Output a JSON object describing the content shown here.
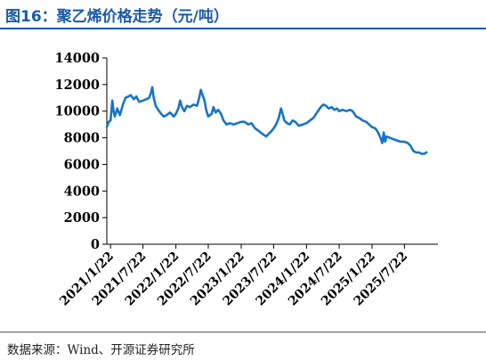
{
  "figure": {
    "title": "图16：聚乙烯价格走势（元/吨）",
    "source": "数据来源：Wind、开源证券研究所"
  },
  "colors": {
    "line": "#1874c4",
    "title": "#1a5aa8",
    "axis": "#000000"
  },
  "chart_data": {
    "type": "line",
    "title": "",
    "xlabel": "",
    "ylabel": "",
    "ylim": [
      0,
      14000
    ],
    "yticks": [
      0,
      2000,
      4000,
      6000,
      8000,
      10000,
      12000,
      14000
    ],
    "xticks": [
      "2021/1/22",
      "2021/7/22",
      "2022/1/22",
      "2022/7/22",
      "2023/1/22",
      "2023/7/22",
      "2024/1/22",
      "2024/7/22",
      "2025/1/22",
      "2025/7/22"
    ],
    "xlim": [
      "2021-01-01",
      "2026-01-25"
    ],
    "grid": false,
    "legend": "none",
    "series": [
      {
        "name": "",
        "points": [
          [
            "2021-01-01",
            8800
          ],
          [
            "2021-01-12",
            9200
          ],
          [
            "2021-01-22",
            9300
          ],
          [
            "2021-02-01",
            10800
          ],
          [
            "2021-02-08",
            10000
          ],
          [
            "2021-02-15",
            9600
          ],
          [
            "2021-02-28",
            10200
          ],
          [
            "2021-03-15",
            9700
          ],
          [
            "2021-04-01",
            10500
          ],
          [
            "2021-04-15",
            11000
          ],
          [
            "2021-05-01",
            11100
          ],
          [
            "2021-05-15",
            11200
          ],
          [
            "2021-06-01",
            10900
          ],
          [
            "2021-06-15",
            11100
          ],
          [
            "2021-07-01",
            10700
          ],
          [
            "2021-07-22",
            10800
          ],
          [
            "2021-08-10",
            10900
          ],
          [
            "2021-08-25",
            11000
          ],
          [
            "2021-09-05",
            11400
          ],
          [
            "2021-09-12",
            11800
          ],
          [
            "2021-09-20",
            11000
          ],
          [
            "2021-10-01",
            10400
          ],
          [
            "2021-10-15",
            10100
          ],
          [
            "2021-11-01",
            9800
          ],
          [
            "2021-11-15",
            9600
          ],
          [
            "2021-12-01",
            9700
          ],
          [
            "2021-12-20",
            9900
          ],
          [
            "2022-01-10",
            9600
          ],
          [
            "2022-01-22",
            9800
          ],
          [
            "2022-02-05",
            10200
          ],
          [
            "2022-02-15",
            10800
          ],
          [
            "2022-02-25",
            10300
          ],
          [
            "2022-03-10",
            10000
          ],
          [
            "2022-03-25",
            10400
          ],
          [
            "2022-04-10",
            10300
          ],
          [
            "2022-05-01",
            10500
          ],
          [
            "2022-05-20",
            10400
          ],
          [
            "2022-06-01",
            11000
          ],
          [
            "2022-06-10",
            11600
          ],
          [
            "2022-06-20",
            11200
          ],
          [
            "2022-07-01",
            10800
          ],
          [
            "2022-07-10",
            10100
          ],
          [
            "2022-07-22",
            9600
          ],
          [
            "2022-08-10",
            9800
          ],
          [
            "2022-08-20",
            10300
          ],
          [
            "2022-09-01",
            9900
          ],
          [
            "2022-09-15",
            10100
          ],
          [
            "2022-10-01",
            9800
          ],
          [
            "2022-10-15",
            9300
          ],
          [
            "2022-11-01",
            9000
          ],
          [
            "2022-11-20",
            9100
          ],
          [
            "2022-12-10",
            9000
          ],
          [
            "2023-01-01",
            9100
          ],
          [
            "2023-01-22",
            9200
          ],
          [
            "2023-02-10",
            9200
          ],
          [
            "2023-03-01",
            9000
          ],
          [
            "2023-03-20",
            9100
          ],
          [
            "2023-04-10",
            8700
          ],
          [
            "2023-05-01",
            8500
          ],
          [
            "2023-05-20",
            8300
          ],
          [
            "2023-06-10",
            8100
          ],
          [
            "2023-06-25",
            8300
          ],
          [
            "2023-07-10",
            8500
          ],
          [
            "2023-07-22",
            8700
          ],
          [
            "2023-08-05",
            9000
          ],
          [
            "2023-08-20",
            9500
          ],
          [
            "2023-09-01",
            10200
          ],
          [
            "2023-09-10",
            9800
          ],
          [
            "2023-09-20",
            9300
          ],
          [
            "2023-10-05",
            9100
          ],
          [
            "2023-10-20",
            9000
          ],
          [
            "2023-11-05",
            9300
          ],
          [
            "2023-11-20",
            9200
          ],
          [
            "2023-12-10",
            8900
          ],
          [
            "2024-01-01",
            9000
          ],
          [
            "2024-01-22",
            9100
          ],
          [
            "2024-02-10",
            9300
          ],
          [
            "2024-03-01",
            9500
          ],
          [
            "2024-03-20",
            9900
          ],
          [
            "2024-04-10",
            10300
          ],
          [
            "2024-04-25",
            10500
          ],
          [
            "2024-05-10",
            10400
          ],
          [
            "2024-05-25",
            10200
          ],
          [
            "2024-06-10",
            10300
          ],
          [
            "2024-06-25",
            10100
          ],
          [
            "2024-07-10",
            10200
          ],
          [
            "2024-07-22",
            10000
          ],
          [
            "2024-08-10",
            10100
          ],
          [
            "2024-09-01",
            10000
          ],
          [
            "2024-09-20",
            10100
          ],
          [
            "2024-10-05",
            10000
          ],
          [
            "2024-10-25",
            9600
          ],
          [
            "2024-11-10",
            9500
          ],
          [
            "2024-12-01",
            9300
          ],
          [
            "2024-12-20",
            9200
          ],
          [
            "2025-01-22",
            8800
          ],
          [
            "2025-02-10",
            8700
          ],
          [
            "2025-02-25",
            8400
          ],
          [
            "2025-03-10",
            8000
          ],
          [
            "2025-03-20",
            7600
          ],
          [
            "2025-03-28",
            8400
          ],
          [
            "2025-04-05",
            7700
          ],
          [
            "2025-04-12",
            8100
          ],
          [
            "2025-05-01",
            8000
          ],
          [
            "2025-05-20",
            7900
          ],
          [
            "2025-06-10",
            7800
          ],
          [
            "2025-07-01",
            7700
          ],
          [
            "2025-07-22",
            7700
          ],
          [
            "2025-08-10",
            7600
          ],
          [
            "2025-08-25",
            7400
          ],
          [
            "2025-09-10",
            7000
          ],
          [
            "2025-09-25",
            6900
          ],
          [
            "2025-10-10",
            6900
          ],
          [
            "2025-10-25",
            6800
          ],
          [
            "2025-11-10",
            6800
          ],
          [
            "2025-11-22",
            6900
          ]
        ]
      }
    ]
  }
}
